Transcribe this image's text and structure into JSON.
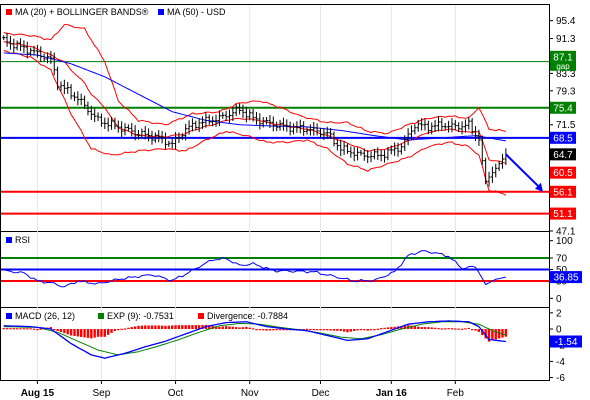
{
  "colors": {
    "price_bar": "#000000",
    "bollinger": "#ff0000",
    "ma50": "#0000ff",
    "support": "#ff0000",
    "resistance": "#008000",
    "pivot": "#0000ff",
    "macd_line": "#0000ff",
    "signal_line": "#008000",
    "divergence": "#ff0000",
    "rsi_line": "#0000ff",
    "axis": "#000000",
    "grid": "#e6e6e6",
    "panel_border": "#000000"
  },
  "chart_data": [
    {
      "type": "line",
      "panel": "price",
      "legend": [
        {
          "label": "MA (20) + BOLLINGER BANDS®",
          "color": "#ff0000"
        },
        {
          "label": "MA (50) - USD",
          "color": "#0000ff"
        }
      ],
      "yticks": [
        "95.4",
        "91.3",
        "87.1",
        "83.3",
        "79.3",
        "75.4",
        "71.5",
        "68.5",
        "64.7",
        "60.5",
        "56.1",
        "51.1",
        "47.1"
      ],
      "ytick_values": [
        95.4,
        91.3,
        87.1,
        83.3,
        79.3,
        75.4,
        71.5,
        68.5,
        64.7,
        60.5,
        56.1,
        51.1,
        47.1
      ],
      "ylim": [
        47.1,
        99.0
      ],
      "x_labels": [
        "Aug 15",
        "Sep",
        "Oct",
        "Nov",
        "Dec",
        "Jan 16",
        "Feb"
      ],
      "x_label_index": [
        10,
        29,
        51,
        73,
        94,
        115,
        134
      ],
      "n_points": 150,
      "horizontal_levels": [
        {
          "value": 86.0,
          "color": "#008000"
        },
        {
          "value": 75.4,
          "color": "#008000"
        },
        {
          "value": 68.5,
          "color": "#0000ff"
        },
        {
          "value": 56.1,
          "color": "#ff0000"
        },
        {
          "value": 51.1,
          "color": "#ff0000"
        }
      ],
      "value_labels": [
        {
          "text": "87.1",
          "value": 87.1,
          "color": "#008000",
          "sub": "gap"
        },
        {
          "text": "75.4",
          "value": 75.4,
          "color": "#008000"
        },
        {
          "text": "68.5",
          "value": 68.5,
          "color": "#0000ff"
        },
        {
          "text": "64.7",
          "value": 64.7,
          "color": "#000000"
        },
        {
          "text": "60.5",
          "value": 60.5,
          "color": "#ff0000"
        },
        {
          "text": "56.1",
          "value": 56.1,
          "color": "#ff0000"
        },
        {
          "text": "51.1",
          "value": 51.1,
          "color": "#ff0000"
        }
      ],
      "close_anchors": [
        [
          0,
          90.8
        ],
        [
          8,
          88.5
        ],
        [
          14,
          86.5
        ],
        [
          16,
          81.0
        ],
        [
          22,
          77.5
        ],
        [
          28,
          72.5
        ],
        [
          32,
          71.5
        ],
        [
          36,
          70.5
        ],
        [
          40,
          69.5
        ],
        [
          46,
          68.5
        ],
        [
          50,
          67.0
        ],
        [
          54,
          70.5
        ],
        [
          58,
          72.0
        ],
        [
          64,
          73.0
        ],
        [
          70,
          75.0
        ],
        [
          74,
          73.0
        ],
        [
          78,
          72.0
        ],
        [
          84,
          71.0
        ],
        [
          90,
          70.5
        ],
        [
          96,
          69.5
        ],
        [
          100,
          66.0
        ],
        [
          106,
          64.5
        ],
        [
          112,
          64.5
        ],
        [
          118,
          66.5
        ],
        [
          122,
          71.5
        ],
        [
          126,
          71.0
        ],
        [
          130,
          71.5
        ],
        [
          134,
          71.0
        ],
        [
          138,
          71.5
        ],
        [
          141,
          68.0
        ],
        [
          143,
          58.5
        ],
        [
          146,
          61.5
        ],
        [
          149,
          64.7
        ]
      ],
      "ma50_anchors": [
        [
          0,
          88.0
        ],
        [
          10,
          87.5
        ],
        [
          20,
          85.5
        ],
        [
          30,
          82.5
        ],
        [
          40,
          78.5
        ],
        [
          50,
          74.5
        ],
        [
          60,
          72.5
        ],
        [
          70,
          71.5
        ],
        [
          80,
          71.2
        ],
        [
          90,
          71.0
        ],
        [
          100,
          70.2
        ],
        [
          110,
          69.0
        ],
        [
          120,
          68.0
        ],
        [
          130,
          68.5
        ],
        [
          140,
          69.0
        ],
        [
          149,
          67.8
        ]
      ],
      "upper_band_anchors": [
        [
          0,
          92.5
        ],
        [
          8,
          92.0
        ],
        [
          14,
          91.0
        ],
        [
          18,
          94.5
        ],
        [
          24,
          93.5
        ],
        [
          30,
          86.0
        ],
        [
          34,
          77.0
        ],
        [
          40,
          72.5
        ],
        [
          48,
          71.5
        ],
        [
          56,
          74.0
        ],
        [
          64,
          74.5
        ],
        [
          70,
          76.5
        ],
        [
          76,
          77.0
        ],
        [
          82,
          75.5
        ],
        [
          88,
          73.5
        ],
        [
          96,
          72.0
        ],
        [
          102,
          72.0
        ],
        [
          108,
          70.0
        ],
        [
          114,
          69.5
        ],
        [
          120,
          71.5
        ],
        [
          126,
          73.0
        ],
        [
          132,
          73.5
        ],
        [
          138,
          73.0
        ],
        [
          141,
          75.5
        ],
        [
          144,
          70.5
        ],
        [
          149,
          70.0
        ]
      ],
      "lower_band_anchors": [
        [
          0,
          88.5
        ],
        [
          8,
          87.0
        ],
        [
          14,
          84.0
        ],
        [
          20,
          74.0
        ],
        [
          26,
          66.0
        ],
        [
          32,
          64.5
        ],
        [
          40,
          65.5
        ],
        [
          48,
          66.0
        ],
        [
          54,
          65.5
        ],
        [
          60,
          68.0
        ],
        [
          66,
          70.0
        ],
        [
          72,
          69.0
        ],
        [
          78,
          67.5
        ],
        [
          84,
          67.5
        ],
        [
          90,
          68.0
        ],
        [
          96,
          66.0
        ],
        [
          102,
          62.5
        ],
        [
          108,
          61.0
        ],
        [
          114,
          62.5
        ],
        [
          120,
          64.0
        ],
        [
          126,
          66.5
        ],
        [
          132,
          67.5
        ],
        [
          138,
          66.5
        ],
        [
          141,
          64.5
        ],
        [
          144,
          56.5
        ],
        [
          149,
          55.5
        ]
      ],
      "projection_arrow": {
        "from_index": 149,
        "from_value": 64.7,
        "to_index": 160,
        "to_value": 56.1
      }
    },
    {
      "type": "line",
      "panel": "rsi",
      "legend": [
        {
          "label": "RSI",
          "color": "#0000ff"
        }
      ],
      "yticks": [
        "100",
        "70",
        "50",
        "30",
        "0"
      ],
      "ytick_values": [
        100,
        70,
        50,
        30,
        0
      ],
      "ylim": [
        0,
        100
      ],
      "horizontal_levels": [
        {
          "value": 70,
          "color": "#008000"
        },
        {
          "value": 50,
          "color": "#0000ff"
        },
        {
          "value": 30,
          "color": "#ff0000"
        }
      ],
      "current_value_label": {
        "text": "36.85",
        "value": 36.85,
        "color": "#0000ff"
      },
      "rsi_anchors": [
        [
          0,
          48
        ],
        [
          6,
          44
        ],
        [
          10,
          30
        ],
        [
          14,
          27
        ],
        [
          18,
          20
        ],
        [
          22,
          30
        ],
        [
          28,
          25
        ],
        [
          34,
          33
        ],
        [
          40,
          38
        ],
        [
          44,
          41
        ],
        [
          50,
          31
        ],
        [
          54,
          42
        ],
        [
          58,
          55
        ],
        [
          62,
          67
        ],
        [
          66,
          69
        ],
        [
          70,
          57
        ],
        [
          74,
          60
        ],
        [
          80,
          48
        ],
        [
          86,
          47
        ],
        [
          92,
          46
        ],
        [
          98,
          38
        ],
        [
          104,
          30
        ],
        [
          110,
          31
        ],
        [
          116,
          46
        ],
        [
          120,
          74
        ],
        [
          124,
          82
        ],
        [
          128,
          79
        ],
        [
          132,
          73
        ],
        [
          136,
          52
        ],
        [
          140,
          55
        ],
        [
          143,
          24
        ],
        [
          146,
          33
        ],
        [
          149,
          36.85
        ]
      ]
    },
    {
      "type": "bar",
      "panel": "macd",
      "legend": [
        {
          "label": "MACD (26, 12)",
          "color": "#0000ff"
        },
        {
          "label": "EXP (9): -0.7531",
          "color": "#008000"
        },
        {
          "label": "Divergence: -0.7884",
          "color": "#ff0000"
        }
      ],
      "yticks": [
        "2",
        "0",
        "-2",
        "-4",
        "-6"
      ],
      "ytick_values": [
        2,
        0,
        -2,
        -4,
        -6
      ],
      "ylim": [
        -6,
        2.5
      ],
      "current_value_label": {
        "text": "-1.54",
        "value": -1.54,
        "color": "#0000ff"
      },
      "macd_anchors": [
        [
          0,
          0.4
        ],
        [
          8,
          0.3
        ],
        [
          14,
          0.0
        ],
        [
          20,
          -1.8
        ],
        [
          26,
          -3.2
        ],
        [
          30,
          -3.6
        ],
        [
          36,
          -3.0
        ],
        [
          42,
          -2.2
        ],
        [
          48,
          -1.5
        ],
        [
          54,
          -0.6
        ],
        [
          60,
          0.3
        ],
        [
          66,
          0.8
        ],
        [
          72,
          0.9
        ],
        [
          78,
          0.3
        ],
        [
          84,
          0.0
        ],
        [
          90,
          -0.2
        ],
        [
          96,
          -0.8
        ],
        [
          102,
          -1.4
        ],
        [
          108,
          -1.2
        ],
        [
          114,
          -0.3
        ],
        [
          120,
          0.6
        ],
        [
          126,
          0.9
        ],
        [
          132,
          1.0
        ],
        [
          138,
          0.9
        ],
        [
          141,
          0.3
        ],
        [
          144,
          -1.3
        ],
        [
          149,
          -1.54
        ]
      ],
      "signal_anchors": [
        [
          0,
          0.3
        ],
        [
          10,
          0.2
        ],
        [
          16,
          -0.4
        ],
        [
          22,
          -1.5
        ],
        [
          28,
          -2.6
        ],
        [
          34,
          -3.2
        ],
        [
          40,
          -2.8
        ],
        [
          46,
          -2.1
        ],
        [
          52,
          -1.3
        ],
        [
          58,
          -0.4
        ],
        [
          64,
          0.4
        ],
        [
          70,
          0.7
        ],
        [
          76,
          0.6
        ],
        [
          82,
          0.2
        ],
        [
          88,
          -0.1
        ],
        [
          94,
          -0.5
        ],
        [
          100,
          -1.0
        ],
        [
          106,
          -1.2
        ],
        [
          112,
          -0.7
        ],
        [
          118,
          0.0
        ],
        [
          124,
          0.6
        ],
        [
          130,
          0.9
        ],
        [
          136,
          0.9
        ],
        [
          141,
          0.6
        ],
        [
          145,
          -0.2
        ],
        [
          149,
          -0.7531
        ]
      ]
    }
  ]
}
